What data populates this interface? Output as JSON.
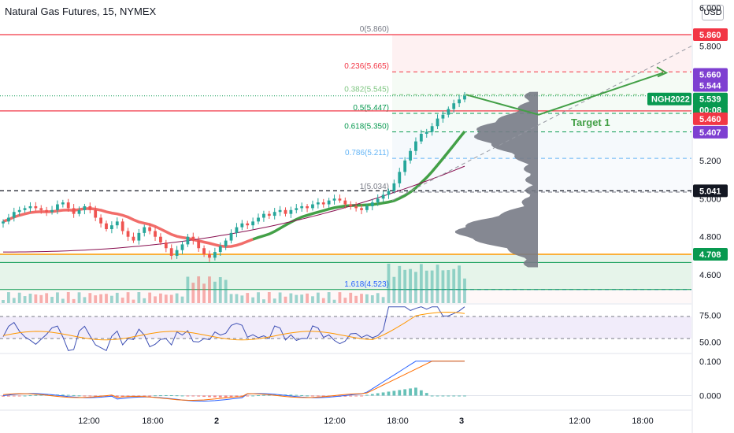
{
  "header": {
    "symbol_title": "Natural Gas Futures, 15, NYMEX",
    "currency_badge": "USD"
  },
  "price_axis": {
    "ticks": [
      "6.000",
      "5.800",
      "5.200",
      "5.000",
      "4.800",
      "4.600"
    ],
    "badges": [
      {
        "id": "fib0",
        "text": "5.860",
        "color": "#f23645"
      },
      {
        "id": "target",
        "text": "5.660",
        "color": "#7e3fd1"
      },
      {
        "id": "v2",
        "text": "5.544",
        "color": "#7e3fd1"
      },
      {
        "id": "last",
        "text": "5.539",
        "color": "#089950"
      },
      {
        "id": "countdown",
        "text": "00:08",
        "color": "#089950"
      },
      {
        "id": "res",
        "text": "5.460",
        "color": "#f23645"
      },
      {
        "id": "v3",
        "text": "5.407",
        "color": "#7e3fd1"
      },
      {
        "id": "level",
        "text": "5.041",
        "color": "#131722"
      },
      {
        "id": "support",
        "text": "4.708",
        "color": "#089950"
      }
    ],
    "last_price_tag": "NGH2022"
  },
  "fibonacci": [
    {
      "text": "0(5.860)",
      "color": "#787b86"
    },
    {
      "text": "0.236(5.665)",
      "color": "#f23645"
    },
    {
      "text": "0.382(5.545)",
      "color": "#81c784"
    },
    {
      "text": "0.5(5.447)",
      "color": "#089950"
    },
    {
      "text": "0.618(5.350)",
      "color": "#089950"
    },
    {
      "text": "0.786(5.211)",
      "color": "#64b5f6"
    },
    {
      "text": "1(5.034)",
      "color": "#787b86"
    },
    {
      "text": "1.618(4.523)",
      "color": "#2962ff"
    }
  ],
  "annotation": {
    "target_label": "Target 1"
  },
  "rsi_axis": [
    "75.00",
    "50.00"
  ],
  "macd_axis": [
    "0.100",
    "0.000"
  ],
  "time_axis": [
    "12:00",
    "18:00",
    "2",
    "12:00",
    "18:00",
    "3",
    "12:00",
    "18:00"
  ],
  "colors": {
    "up": "#26a69a",
    "down": "#ef5350",
    "sma_fast": "#43a047",
    "sma_slow": "#ef5350",
    "sma_long": "#880e4f",
    "volume_profile": "#787b86"
  },
  "chart_data": {
    "type": "candlestick",
    "title": "Natural Gas Futures, 15, NYMEX",
    "y_unit": "USD",
    "ylim": [
      4.46,
      6.0
    ],
    "series": [
      {
        "name": "NGH2022",
        "type": "candlestick",
        "close": [
          4.88,
          4.9,
          4.93,
          4.94,
          4.95,
          4.96,
          4.95,
          4.94,
          4.93,
          4.94,
          4.97,
          4.98,
          4.95,
          4.92,
          4.94,
          4.96,
          4.94,
          4.9,
          4.87,
          4.84,
          4.86,
          4.88,
          4.83,
          4.8,
          4.78,
          4.82,
          4.85,
          4.83,
          4.8,
          4.77,
          4.74,
          4.7,
          4.73,
          4.76,
          4.8,
          4.78,
          4.74,
          4.71,
          4.69,
          4.72,
          4.75,
          4.78,
          4.82,
          4.85,
          4.87,
          4.86,
          4.88,
          4.9,
          4.92,
          4.91,
          4.93,
          4.94,
          4.92,
          4.94,
          4.95,
          4.96,
          4.95,
          4.97,
          4.98,
          4.97,
          4.99,
          5.0,
          4.99,
          4.97,
          4.96,
          4.95,
          4.94,
          4.96,
          4.98,
          5.0,
          5.02,
          5.04,
          5.08,
          5.14,
          5.2,
          5.25,
          5.3,
          5.34,
          5.35,
          5.38,
          5.42,
          5.44,
          5.47,
          5.5,
          5.52,
          5.54
        ]
      }
    ],
    "fib_levels": [
      {
        "ratio": 0,
        "price": 5.86
      },
      {
        "ratio": 0.236,
        "price": 5.665
      },
      {
        "ratio": 0.382,
        "price": 5.545
      },
      {
        "ratio": 0.5,
        "price": 5.447
      },
      {
        "ratio": 0.618,
        "price": 5.35
      },
      {
        "ratio": 0.786,
        "price": 5.211
      },
      {
        "ratio": 1,
        "price": 5.034
      },
      {
        "ratio": 1.618,
        "price": 4.523
      }
    ],
    "horizontal_levels": [
      5.86,
      5.46,
      5.041,
      4.708
    ],
    "last_price": 5.539,
    "target_price": 5.66,
    "rsi": {
      "ylim": [
        40,
        85
      ],
      "bands": [
        70,
        50
      ]
    },
    "macd": {
      "ylim": [
        -0.04,
        0.12
      ]
    }
  }
}
